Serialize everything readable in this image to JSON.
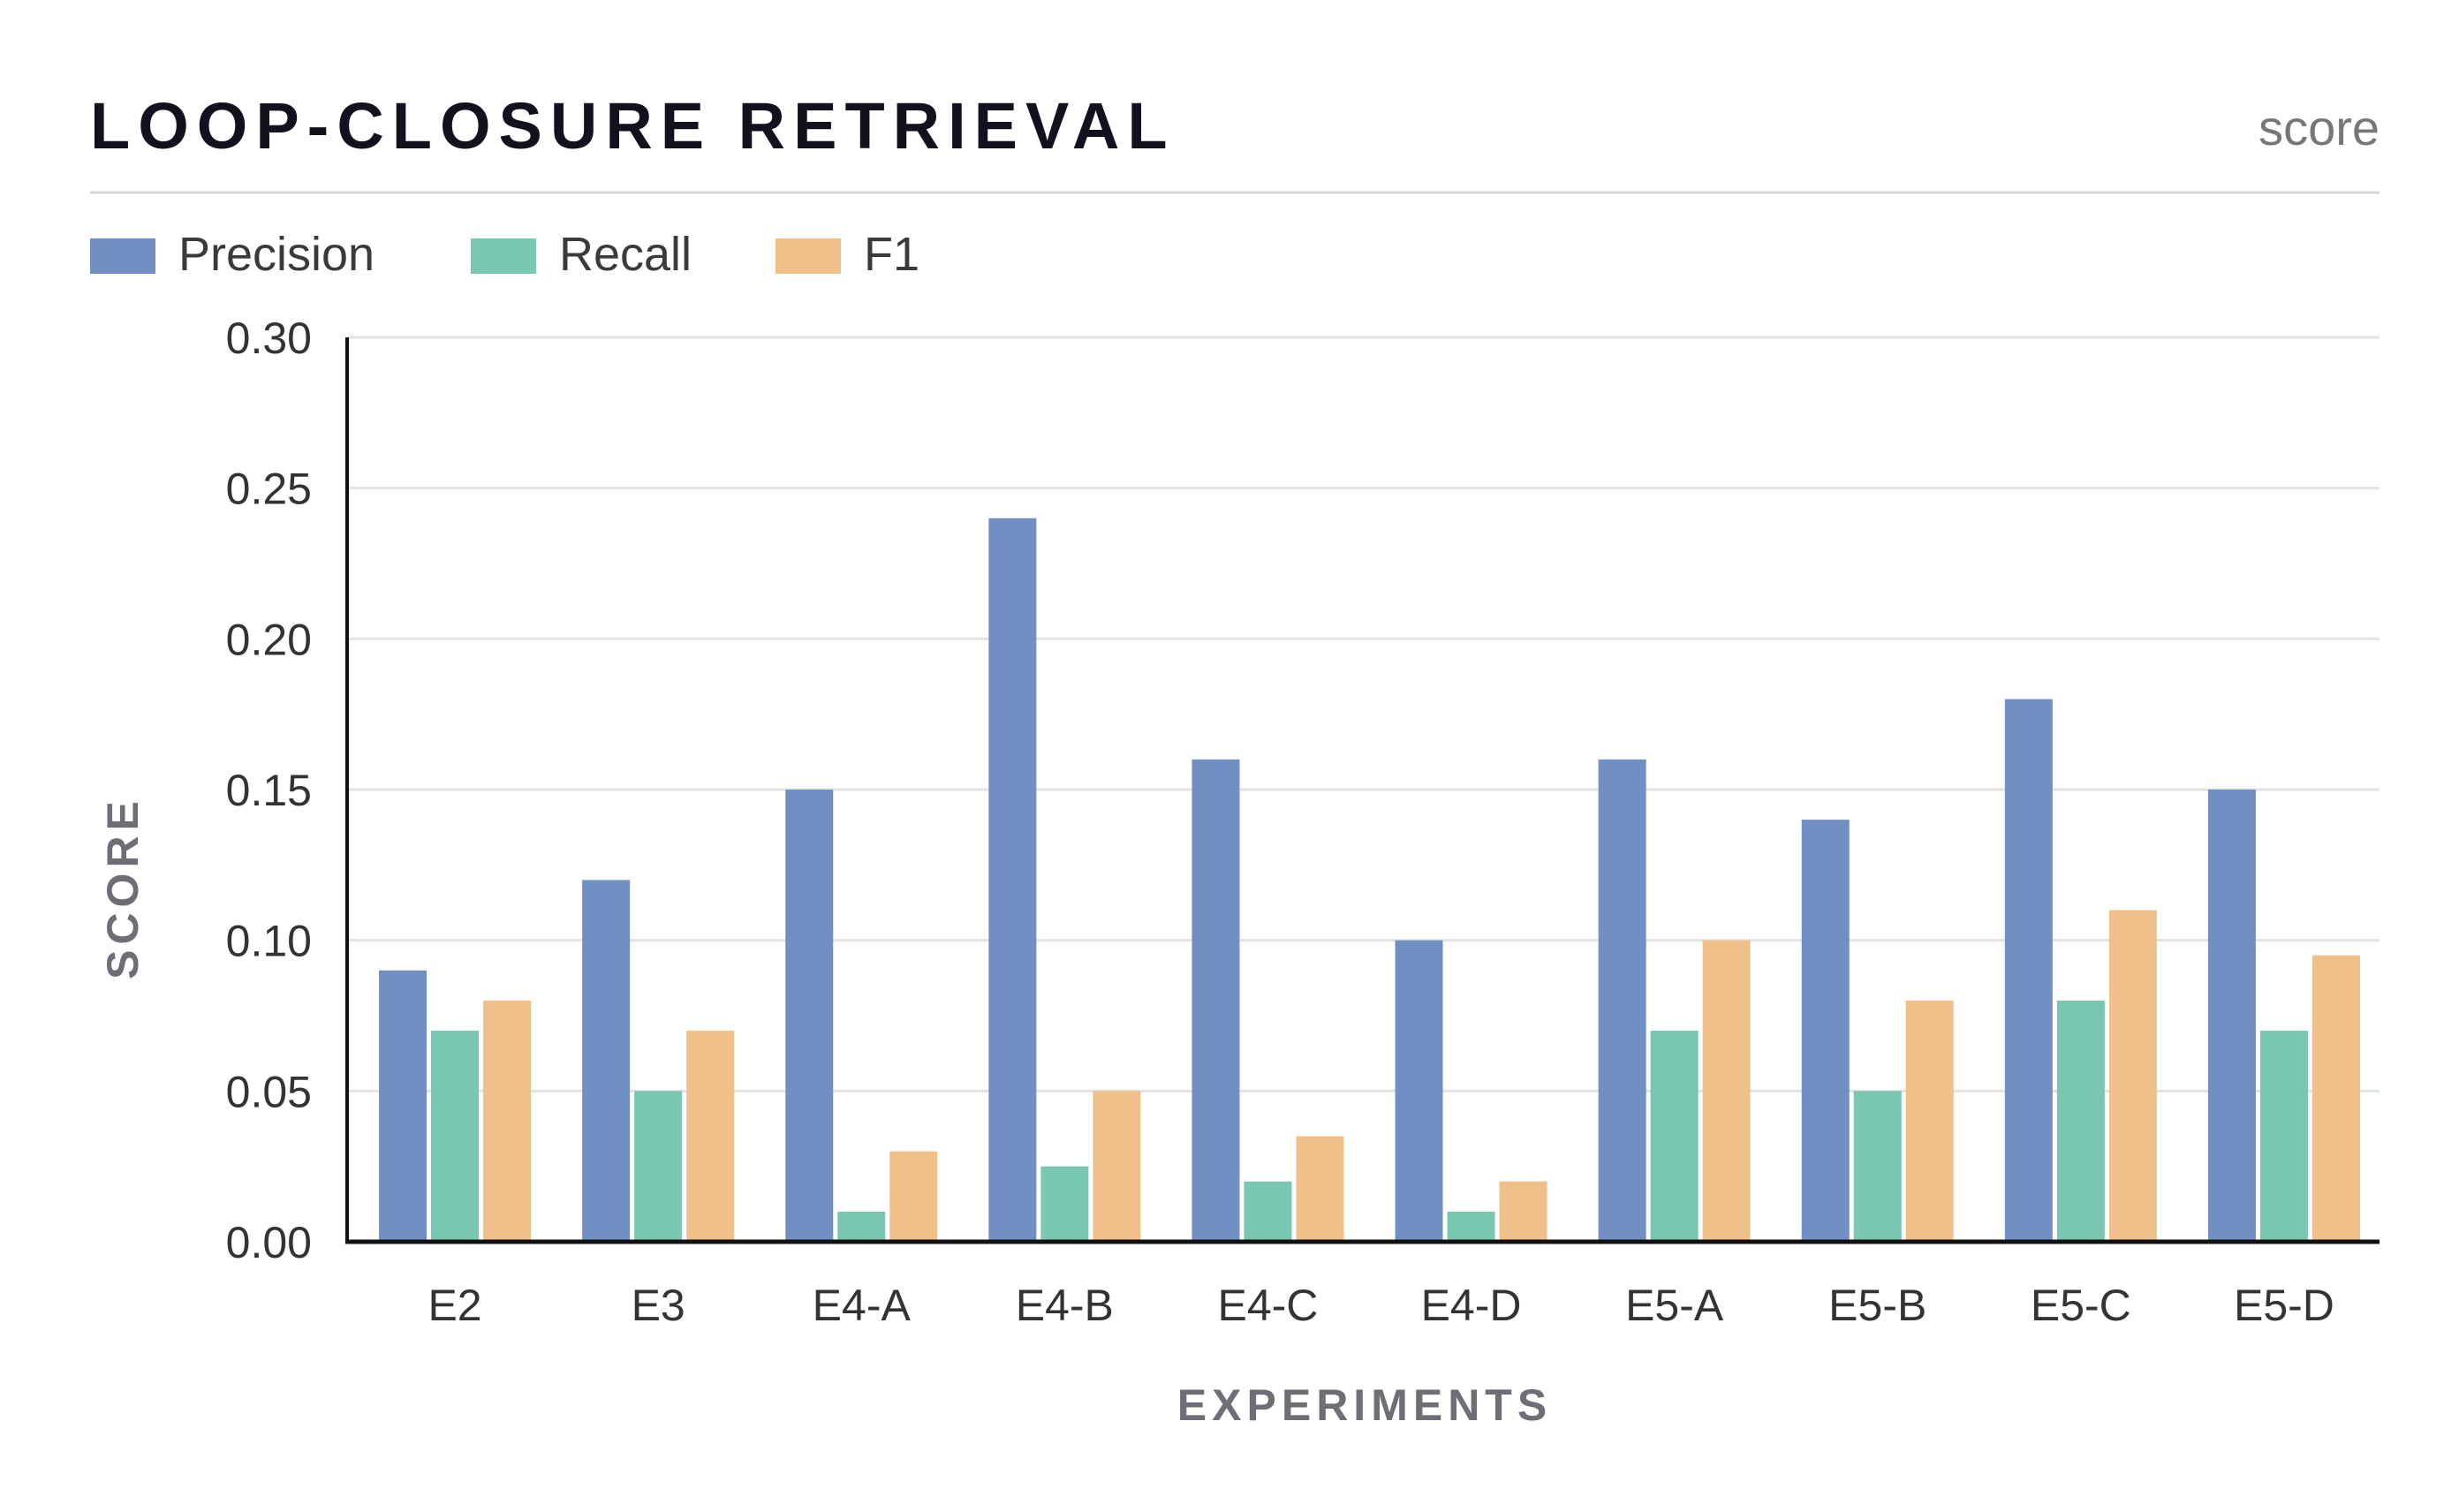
{
  "chart_data": {
    "type": "bar",
    "title": "LOOP-CLOSURE RETRIEVAL",
    "subtitle": "score",
    "xlabel": "EXPERIMENTS",
    "ylabel": "SCORE",
    "ylim": [
      0,
      0.3
    ],
    "yticks": [
      "0.00",
      "0.05",
      "0.10",
      "0.15",
      "0.20",
      "0.25",
      "0.30"
    ],
    "grid": true,
    "legend_position": "top-left",
    "categories": [
      "E2",
      "E3",
      "E4-A",
      "E4-B",
      "E4-C",
      "E4-D",
      "E5-A",
      "E5-B",
      "E5-C",
      "E5-D"
    ],
    "series": [
      {
        "name": "Precision",
        "color": "#7090c4",
        "values": [
          0.09,
          0.12,
          0.15,
          0.24,
          0.16,
          0.1,
          0.16,
          0.14,
          0.18,
          0.15
        ]
      },
      {
        "name": "Recall",
        "color": "#79c6b1",
        "values": [
          0.07,
          0.05,
          0.01,
          0.025,
          0.02,
          0.01,
          0.07,
          0.05,
          0.08,
          0.07
        ]
      },
      {
        "name": "F1",
        "color": "#f0c08a",
        "values": [
          0.08,
          0.07,
          0.03,
          0.05,
          0.035,
          0.02,
          0.1,
          0.08,
          0.11,
          0.095
        ]
      }
    ]
  }
}
